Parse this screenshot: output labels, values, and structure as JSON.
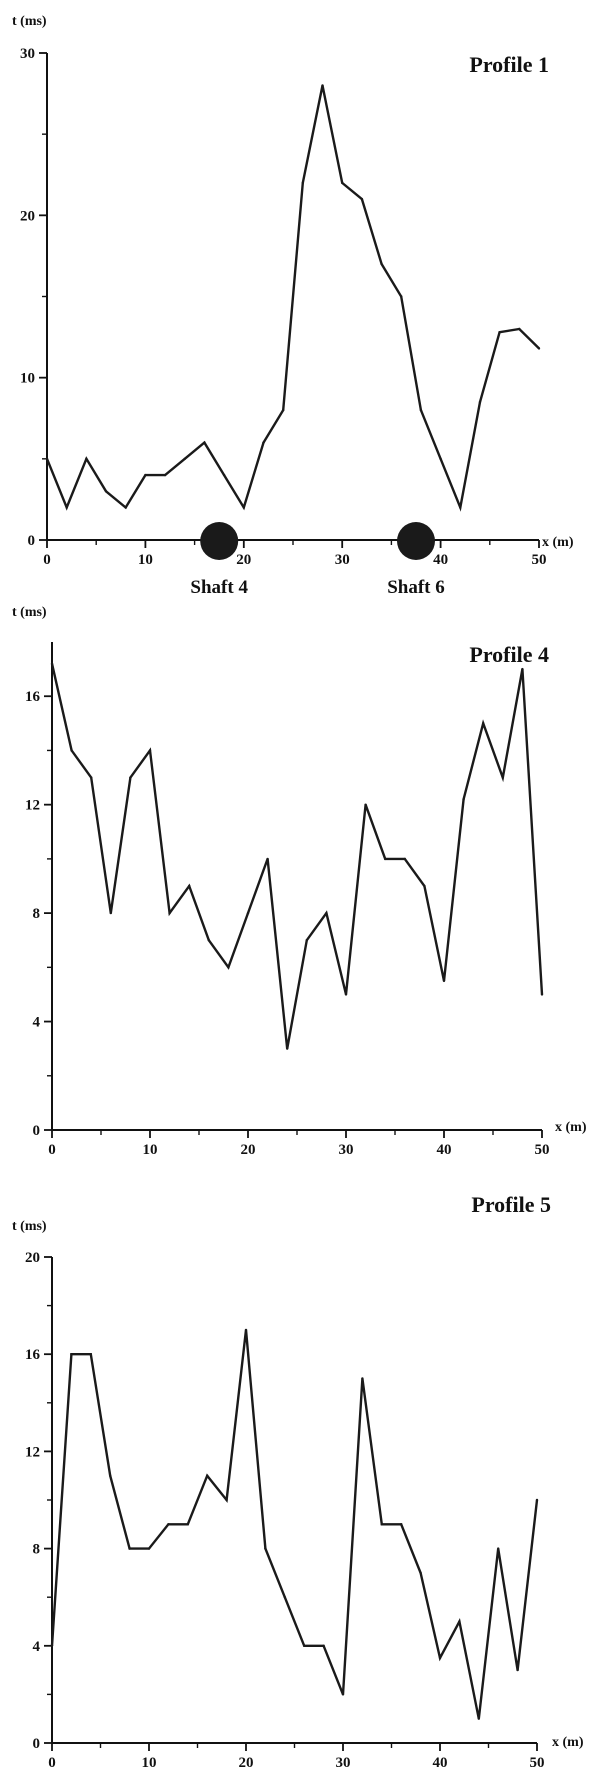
{
  "chart_data": [
    {
      "type": "line",
      "title": "Profile 1",
      "xlabel": "x (m)",
      "ylabel": "t (ms)",
      "xlim": [
        0,
        50
      ],
      "ylim": [
        0,
        30
      ],
      "xticks": [
        0,
        10,
        20,
        30,
        40,
        50
      ],
      "yticks": [
        0,
        10,
        20,
        30
      ],
      "x": [
        0,
        2,
        4,
        6,
        8,
        10,
        12,
        14,
        16,
        18,
        20,
        22,
        24,
        26,
        28,
        30,
        32,
        34,
        36,
        38,
        40,
        42,
        44,
        46,
        48,
        50
      ],
      "series": [
        {
          "values": [
            5,
            2,
            5,
            3,
            2,
            4,
            4,
            5,
            6,
            4,
            2,
            6,
            8,
            22,
            28,
            22,
            21,
            17,
            15,
            8,
            5,
            2,
            8.5,
            12.8,
            13,
            11.8
          ]
        }
      ],
      "markers": [
        {
          "label": "Shaft 4",
          "x": 17.5
        },
        {
          "label": "Shaft 6",
          "x": 37.5
        }
      ],
      "grid": false
    },
    {
      "type": "line",
      "title": "Profile 4",
      "xlabel": "x (m)",
      "ylabel": "t (ms)",
      "xlim": [
        0,
        50
      ],
      "ylim": [
        0,
        18
      ],
      "xticks": [
        0,
        10,
        20,
        30,
        40,
        50
      ],
      "yticks": [
        0,
        4,
        8,
        12,
        16
      ],
      "x": [
        0,
        2,
        4,
        6,
        8,
        10,
        12,
        14,
        16,
        18,
        20,
        22,
        24,
        26,
        28,
        30,
        32,
        34,
        36,
        38,
        40,
        42,
        44,
        46,
        48,
        50
      ],
      "series": [
        {
          "values": [
            17.2,
            14,
            13,
            8,
            13,
            14,
            8,
            9,
            7,
            6,
            8,
            10,
            3,
            7,
            8,
            5,
            12,
            10,
            10,
            9,
            5.5,
            12.2,
            15,
            13,
            17,
            5
          ]
        }
      ],
      "grid": false
    },
    {
      "type": "line",
      "title": "Profile 5",
      "xlabel": "x (m)",
      "ylabel": "t (ms)",
      "xlim": [
        0,
        50
      ],
      "ylim": [
        0,
        20
      ],
      "xticks": [
        0,
        10,
        20,
        30,
        40,
        50
      ],
      "yticks": [
        0,
        4,
        8,
        12,
        16,
        20
      ],
      "x": [
        0,
        2,
        4,
        6,
        8,
        10,
        12,
        14,
        16,
        18,
        20,
        22,
        24,
        26,
        28,
        30,
        32,
        34,
        36,
        38,
        40,
        42,
        44,
        46,
        48,
        50
      ],
      "series": [
        {
          "values": [
            4,
            16,
            16,
            11,
            8,
            8,
            9,
            9,
            11,
            10,
            17,
            8,
            6,
            4,
            4,
            2,
            15,
            9,
            9,
            7,
            3.5,
            5,
            1,
            8,
            3,
            10
          ]
        }
      ],
      "grid": false
    }
  ]
}
